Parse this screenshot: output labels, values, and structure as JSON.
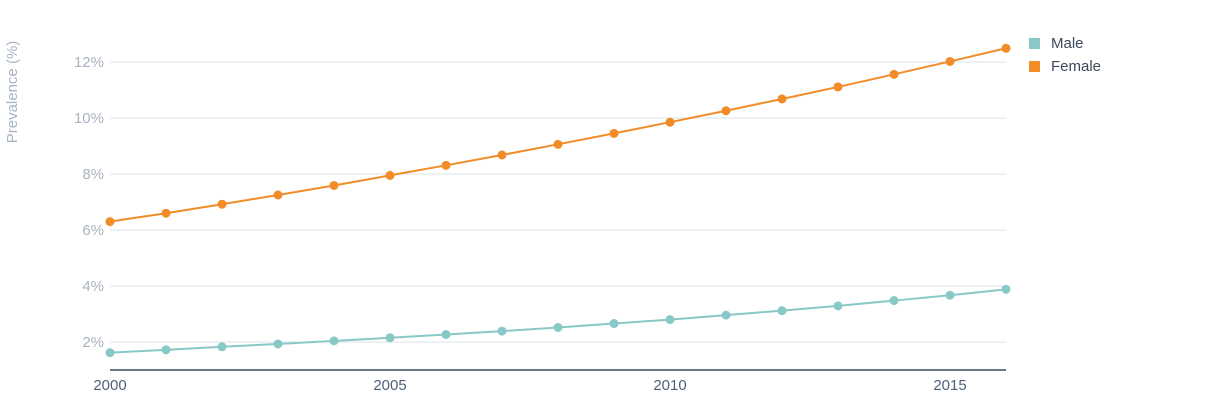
{
  "chart_data": {
    "type": "line",
    "title": "",
    "xlabel": "",
    "ylabel": "Prevalence (%)",
    "x": [
      2000,
      2001,
      2002,
      2003,
      2004,
      2005,
      2006,
      2007,
      2008,
      2009,
      2010,
      2011,
      2012,
      2013,
      2014,
      2015,
      2016
    ],
    "xlim": [
      2000,
      2016
    ],
    "ylim": [
      1,
      13
    ],
    "xticks": [
      2000,
      2005,
      2010,
      2015
    ],
    "xtick_labels": [
      "2000",
      "2005",
      "2010",
      "2015"
    ],
    "yticks": [
      2,
      4,
      6,
      8,
      10,
      12
    ],
    "ytick_labels": [
      "2%",
      "4%",
      "6%",
      "8%",
      "10%",
      "12%"
    ],
    "grid": true,
    "legend": "top-right",
    "series": [
      {
        "name": "Male",
        "color": "#88c9c8",
        "values": [
          1.62,
          1.72,
          1.83,
          1.93,
          2.04,
          2.15,
          2.27,
          2.39,
          2.52,
          2.66,
          2.8,
          2.96,
          3.12,
          3.29,
          3.48,
          3.67,
          3.88
        ]
      },
      {
        "name": "Female",
        "color": "#f28c28",
        "values": [
          6.3,
          6.6,
          6.92,
          7.25,
          7.59,
          7.95,
          8.31,
          8.68,
          9.06,
          9.45,
          9.85,
          10.26,
          10.68,
          11.11,
          11.56,
          12.02,
          12.49
        ]
      }
    ]
  }
}
